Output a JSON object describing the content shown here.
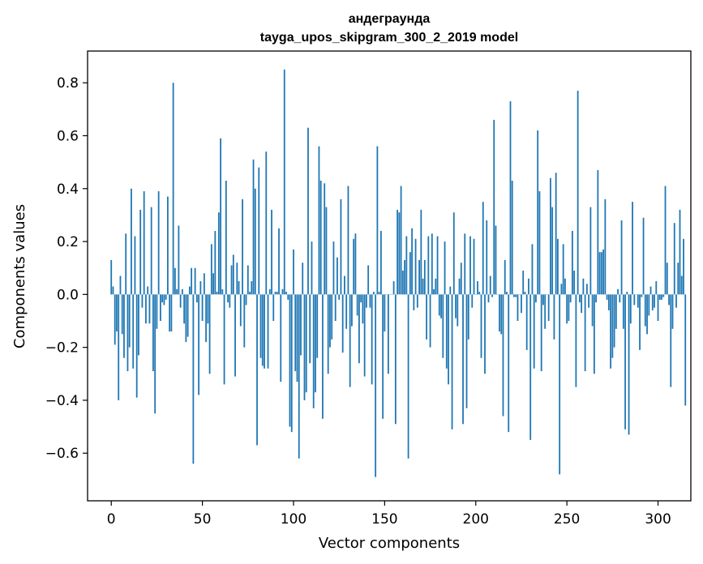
{
  "chart_data": {
    "type": "bar",
    "title": "андеграунда",
    "subtitle": "tayga_upos_skipgram_300_2_2019 model",
    "xlabel": "Vector components",
    "ylabel": "Components values",
    "xlim": [
      -13,
      318
    ],
    "ylim": [
      -0.78,
      0.92
    ],
    "xticks": [
      0,
      50,
      100,
      150,
      200,
      250,
      300
    ],
    "xtick_labels": [
      "0",
      "50",
      "100",
      "150",
      "200",
      "250",
      "300"
    ],
    "yticks": [
      -0.6,
      -0.4,
      -0.2,
      0.0,
      0.2,
      0.4,
      0.6,
      0.8
    ],
    "ytick_labels": [
      "−0.6",
      "−0.4",
      "−0.2",
      "0.0",
      "0.2",
      "0.4",
      "0.6",
      "0.8"
    ],
    "grid": false,
    "bar_color": "#1f77b4",
    "series": [
      {
        "values": [
          0.13,
          0.03,
          -0.19,
          -0.14,
          -0.4,
          0.07,
          -0.15,
          -0.24,
          0.23,
          -0.29,
          -0.2,
          0.4,
          -0.28,
          0.22,
          -0.39,
          -0.23,
          0.32,
          -0.05,
          0.39,
          -0.11,
          0.03,
          -0.11,
          0.33,
          -0.29,
          -0.45,
          -0.13,
          0.39,
          -0.1,
          -0.03,
          -0.04,
          -0.02,
          0.37,
          -0.14,
          -0.14,
          0.8,
          0.1,
          0.02,
          0.26,
          -0.05,
          0.02,
          -0.11,
          -0.18,
          -0.16,
          0.03,
          0.1,
          -0.64,
          0.1,
          -0.03,
          -0.38,
          0.05,
          -0.1,
          0.08,
          -0.18,
          -0.11,
          -0.3,
          0.19,
          0.08,
          0.24,
          0.01,
          0.31,
          0.59,
          0.02,
          -0.34,
          0.43,
          -0.03,
          -0.05,
          0.11,
          0.15,
          -0.31,
          0.12,
          0.05,
          -0.12,
          0.36,
          -0.2,
          -0.04,
          0.11,
          0.01,
          0.05,
          0.51,
          0.4,
          -0.57,
          0.48,
          -0.24,
          -0.27,
          -0.28,
          0.54,
          -0.28,
          0.02,
          0.32,
          -0.1,
          0.01,
          0.01,
          0.25,
          -0.33,
          0.02,
          0.85,
          0.01,
          -0.02,
          -0.5,
          -0.52,
          0.17,
          -0.29,
          -0.33,
          -0.62,
          -0.23,
          0.12,
          -0.4,
          -0.37,
          0.63,
          -0.26,
          0.2,
          -0.43,
          -0.37,
          -0.24,
          0.56,
          0.43,
          -0.47,
          0.42,
          0.33,
          -0.3,
          -0.2,
          -0.17,
          0.2,
          -0.1,
          0.14,
          -0.02,
          0.36,
          -0.22,
          0.07,
          -0.13,
          0.41,
          -0.35,
          -0.12,
          0.21,
          0.23,
          -0.08,
          -0.26,
          -0.03,
          -0.11,
          -0.31,
          -0.05,
          0.11,
          -0.05,
          -0.34,
          0.01,
          -0.69,
          0.56,
          0.01,
          0.24,
          -0.47,
          -0.14,
          0.0,
          -0.3,
          0.0,
          0.0,
          0.05,
          -0.49,
          0.32,
          0.31,
          0.41,
          0.09,
          0.13,
          0.22,
          -0.62,
          0.16,
          0.25,
          -0.06,
          0.21,
          -0.05,
          0.13,
          0.32,
          0.06,
          0.13,
          -0.17,
          0.22,
          -0.2,
          0.23,
          0.02,
          0.06,
          0.22,
          -0.08,
          -0.09,
          -0.24,
          0.2,
          -0.28,
          -0.34,
          0.03,
          -0.51,
          0.31,
          -0.09,
          -0.12,
          0.06,
          0.12,
          -0.49,
          0.23,
          -0.43,
          -0.17,
          0.22,
          -0.05,
          0.21,
          0.0,
          0.05,
          0.01,
          -0.24,
          0.35,
          -0.3,
          0.28,
          -0.03,
          0.07,
          -0.01,
          0.66,
          0.26,
          0.0,
          -0.14,
          -0.15,
          -0.46,
          0.13,
          0.01,
          -0.52,
          0.73,
          0.43,
          -0.01,
          -0.01,
          -0.1,
          0.0,
          -0.07,
          0.09,
          0.01,
          -0.21,
          0.06,
          -0.55,
          0.19,
          -0.28,
          -0.03,
          0.62,
          0.39,
          -0.29,
          -0.04,
          -0.13,
          0.0,
          -0.1,
          0.44,
          0.33,
          -0.17,
          0.46,
          0.21,
          -0.68,
          0.04,
          0.19,
          0.06,
          -0.11,
          -0.1,
          -0.03,
          0.24,
          0.09,
          -0.35,
          0.77,
          -0.03,
          -0.07,
          0.06,
          -0.29,
          0.04,
          -0.05,
          0.33,
          -0.12,
          -0.3,
          -0.03,
          0.47,
          0.16,
          0.16,
          0.17,
          0.36,
          -0.02,
          -0.06,
          -0.28,
          -0.24,
          -0.2,
          -0.13,
          0.02,
          -0.03,
          0.28,
          -0.13,
          -0.51,
          0.01,
          -0.53,
          -0.11,
          0.35,
          -0.04,
          0.0,
          -0.05,
          -0.21,
          -0.01,
          0.29,
          -0.12,
          -0.15,
          -0.08,
          0.03,
          -0.06,
          -0.05,
          0.05,
          -0.1,
          -0.02,
          -0.02,
          -0.01,
          0.41,
          0.12,
          -0.04,
          -0.35,
          -0.13,
          0.27,
          -0.05,
          0.12,
          0.32,
          0.07,
          0.21,
          -0.42
        ]
      }
    ]
  }
}
